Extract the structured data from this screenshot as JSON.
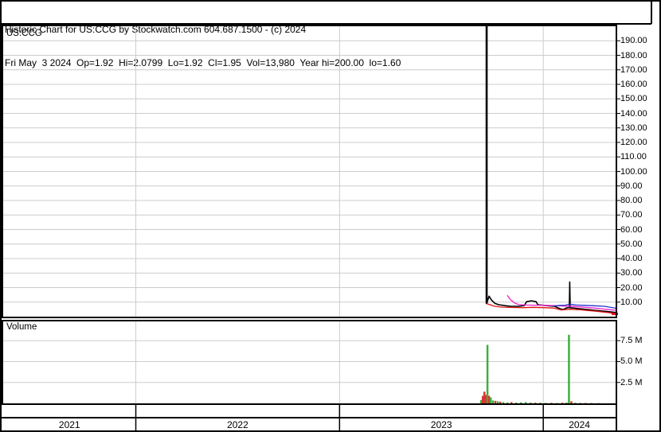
{
  "header": {
    "line1": "Historic Chart for US:CCG by Stockwatch.com 604.687.1500 - (c) 2024",
    "line2": "Fri May  3 2024  Op=1.92  Hi=2.0799  Lo=1.92  Cl=1.95  Vol=13,980  Year hi=200.00  lo=1.60"
  },
  "price_panel": {
    "symbol_label": "US:CCG"
  },
  "volume_panel": {
    "label": "Volume"
  },
  "colors": {
    "price_line": "#000000",
    "red_line": "#e01010",
    "magenta_line": "#ee22cc",
    "blue_line": "#2233cc",
    "vol_up": "#3cb03c",
    "vol_down": "#dd3333",
    "grid": "#cccccc",
    "last_price_marker": "#e01010"
  },
  "chart_data": {
    "type": "line+bar",
    "title": "Historic Chart for US:CCG",
    "symbol": "US:CCG",
    "date": "Fri May 3 2024",
    "quote": {
      "open": 1.92,
      "high": 2.0799,
      "low": 1.92,
      "close": 1.95,
      "volume": 13980,
      "year_high": 200.0,
      "year_low": 1.6
    },
    "x_unit": "decimal_year",
    "xlim": [
      2021.349,
      2024.355
    ],
    "year_dividers": [
      2022,
      2023,
      2024
    ],
    "year_labels": [
      "2021",
      "2022",
      "2023",
      "2024"
    ],
    "price_chart": {
      "type": "line",
      "ylim": [
        0,
        200
      ],
      "tick_labels": [
        "190.00",
        "180.00",
        "170.00",
        "160.00",
        "150.00",
        "140.00",
        "130.00",
        "120.00",
        "110.00",
        "100.00",
        "90.00",
        "80.00",
        "70.00",
        "60.00",
        "50.00",
        "40.00",
        "30.00",
        "20.00",
        "10.00"
      ],
      "spike": {
        "t": 2023.722,
        "high": 200,
        "low": 9.0
      },
      "series": [
        {
          "name": "price",
          "color_key": "price_line",
          "width": 1.6,
          "points": [
            [
              2023.722,
              200
            ],
            [
              2023.722,
              9.0
            ],
            [
              2023.734,
              14.1
            ],
            [
              2023.746,
              11.4
            ],
            [
              2023.762,
              9.2
            ],
            [
              2023.781,
              8.2
            ],
            [
              2023.809,
              7.6
            ],
            [
              2023.84,
              7.1
            ],
            [
              2023.879,
              7.1
            ],
            [
              2023.907,
              7.6
            ],
            [
              2023.918,
              10.3
            ],
            [
              2023.942,
              10.9
            ],
            [
              2023.965,
              10.3
            ],
            [
              2023.973,
              8.2
            ],
            [
              2024.012,
              7.6
            ],
            [
              2024.055,
              7.1
            ],
            [
              2024.083,
              5.4
            ],
            [
              2024.098,
              4.9
            ],
            [
              2024.114,
              6.0
            ],
            [
              2024.128,
              6.3
            ],
            [
              2024.13,
              23.9
            ],
            [
              2024.132,
              6.1
            ],
            [
              2024.145,
              6.0
            ],
            [
              2024.177,
              5.4
            ],
            [
              2024.216,
              4.9
            ],
            [
              2024.255,
              4.3
            ],
            [
              2024.294,
              3.8
            ],
            [
              2024.334,
              3.3
            ],
            [
              2024.361,
              2.7
            ]
          ]
        },
        {
          "name": "indicator-red",
          "color_key": "red_line",
          "width": 1.3,
          "points": [
            [
              2023.722,
              9.0
            ],
            [
              2023.76,
              7.2
            ],
            [
              2023.8,
              6.5
            ],
            [
              2023.85,
              6.3
            ],
            [
              2023.9,
              6.2
            ],
            [
              2023.95,
              6.4
            ],
            [
              2024.0,
              6.2
            ],
            [
              2024.05,
              5.9
            ],
            [
              2024.09,
              4.6
            ],
            [
              2024.13,
              5.1
            ],
            [
              2024.18,
              4.7
            ],
            [
              2024.22,
              4.2
            ],
            [
              2024.26,
              3.7
            ],
            [
              2024.3,
              3.1
            ],
            [
              2024.355,
              2.2
            ]
          ]
        },
        {
          "name": "indicator-magenta",
          "color_key": "magenta_line",
          "width": 1.3,
          "points": [
            [
              2023.823,
              14.7
            ],
            [
              2023.84,
              11.5
            ],
            [
              2023.86,
              9.3
            ],
            [
              2023.88,
              8.3
            ],
            [
              2023.91,
              8.0
            ],
            [
              2023.95,
              7.9
            ],
            [
              2024.0,
              7.8
            ],
            [
              2024.05,
              7.6
            ],
            [
              2024.1,
              7.3
            ],
            [
              2024.15,
              7.0
            ],
            [
              2024.2,
              6.5
            ],
            [
              2024.25,
              5.9
            ],
            [
              2024.3,
              5.2
            ],
            [
              2024.355,
              4.4
            ]
          ]
        },
        {
          "name": "indicator-blue",
          "color_key": "blue_line",
          "width": 1.3,
          "points": [
            [
              2024.049,
              7.3
            ],
            [
              2024.08,
              7.7
            ],
            [
              2024.11,
              7.9
            ],
            [
              2024.128,
              8.6
            ],
            [
              2024.16,
              8.0
            ],
            [
              2024.2,
              7.8
            ],
            [
              2024.25,
              7.5
            ],
            [
              2024.3,
              7.1
            ],
            [
              2024.355,
              5.8
            ]
          ]
        }
      ],
      "last_price": 1.95
    },
    "volume_chart": {
      "type": "bar",
      "ylim": [
        0,
        9.9
      ],
      "unit": "millions of shares",
      "tick_labels": [
        "7.5 M",
        "5.0 M",
        "2.5 M"
      ],
      "bars": [
        [
          2023.695,
          0.4,
          "up"
        ],
        [
          2023.703,
          0.9,
          "down"
        ],
        [
          2023.711,
          1.4,
          "down"
        ],
        [
          2023.718,
          1.0,
          "down"
        ],
        [
          2023.726,
          7.0,
          "up"
        ],
        [
          2023.734,
          0.9,
          "down"
        ],
        [
          2023.742,
          0.7,
          "up"
        ],
        [
          2023.753,
          0.35,
          "up"
        ],
        [
          2023.765,
          0.3,
          "down"
        ],
        [
          2023.777,
          0.25,
          "up"
        ],
        [
          2023.789,
          0.2,
          "down"
        ],
        [
          2023.804,
          0.15,
          "up"
        ],
        [
          2023.824,
          0.12,
          "up"
        ],
        [
          2023.844,
          0.15,
          "down"
        ],
        [
          2023.867,
          0.1,
          "up"
        ],
        [
          2023.891,
          0.12,
          "up"
        ],
        [
          2023.914,
          0.15,
          "up"
        ],
        [
          2023.938,
          0.1,
          "up"
        ],
        [
          2023.961,
          0.08,
          "down"
        ],
        [
          2023.985,
          0.08,
          "up"
        ],
        [
          2024.012,
          0.06,
          "up"
        ],
        [
          2024.04,
          0.07,
          "down"
        ],
        [
          2024.067,
          0.05,
          "up"
        ],
        [
          2024.094,
          0.08,
          "down"
        ],
        [
          2024.114,
          0.1,
          "up"
        ],
        [
          2024.126,
          8.2,
          "up"
        ],
        [
          2024.138,
          0.25,
          "down"
        ],
        [
          2024.157,
          0.08,
          "up"
        ],
        [
          2024.181,
          0.06,
          "up"
        ],
        [
          2024.208,
          0.05,
          "down"
        ],
        [
          2024.236,
          0.05,
          "up"
        ],
        [
          2024.271,
          0.04,
          "up"
        ]
      ]
    }
  }
}
